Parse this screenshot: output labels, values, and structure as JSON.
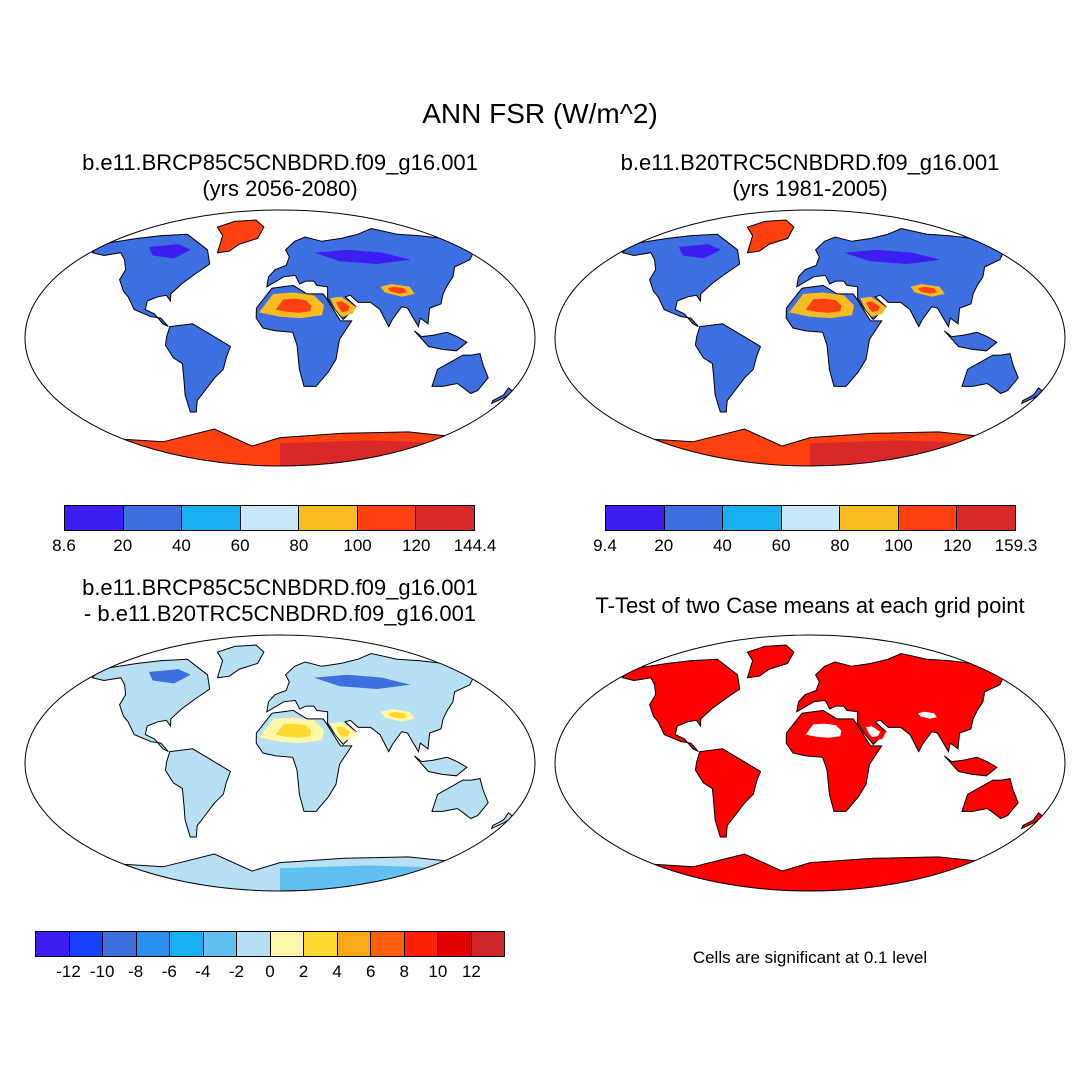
{
  "title": "ANN FSR (W/m^2)",
  "panels": {
    "p1": {
      "title_line1": "b.e11.BRCP85C5CNBDRD.f09_g16.001",
      "title_line2": "(yrs 2056-2080)"
    },
    "p2": {
      "title_line1": "b.e11.B20TRC5CNBDRD.f09_g16.001",
      "title_line2": "(yrs 1981-2005)"
    },
    "p3": {
      "title_line1": "b.e11.BRCP85C5CNBDRD.f09_g16.001",
      "title_line2": "- b.e11.B20TRC5CNBDRD.f09_g16.001"
    },
    "p4": {
      "title_line1": "T-Test of two Case means at each grid point",
      "note": "Cells are significant at 0.1 level"
    }
  },
  "colorbars": {
    "cb1": {
      "labels": [
        "8.6",
        "20",
        "40",
        "60",
        "80",
        "100",
        "120",
        "144.4"
      ],
      "colors": [
        "#3a1ff0",
        "#3d6fe0",
        "#18b0f0",
        "#c6e8f8",
        "#f8bc20",
        "#ff4010",
        "#d82828"
      ]
    },
    "cb2": {
      "labels": [
        "9.4",
        "20",
        "40",
        "60",
        "80",
        "100",
        "120",
        "159.3"
      ],
      "colors": [
        "#3a1ff0",
        "#3d6fe0",
        "#18b0f0",
        "#c6e8f8",
        "#f8bc20",
        "#ff4010",
        "#d82828"
      ]
    },
    "cb3": {
      "labels": [
        "-12",
        "-10",
        "-8",
        "-6",
        "-4",
        "-2",
        "0",
        "2",
        "4",
        "6",
        "8",
        "10",
        "12"
      ],
      "colors": [
        "#3a1ff0",
        "#1a40ff",
        "#3d6fe0",
        "#2a90f0",
        "#18b0f0",
        "#60c0f0",
        "#b8e0f4",
        "#fff8a8",
        "#ffd830",
        "#f8a818",
        "#ff6010",
        "#ff2000",
        "#e00000",
        "#d02828"
      ]
    }
  },
  "map_colors": {
    "ocean": "#ffffff",
    "p1": {
      "land": "#3d6fe0",
      "desert": "#f8bc20",
      "desert_hot": "#ff4010",
      "ice": "#ff4010",
      "ice_hot": "#d82828",
      "arctic": "#3a1ff0"
    },
    "p2": {
      "land": "#3d6fe0",
      "desert": "#f8bc20",
      "desert_hot": "#ff4010",
      "ice": "#ff4010",
      "ice_hot": "#d82828",
      "arctic": "#3a1ff0"
    },
    "p3": {
      "land": "#b8e0f4",
      "desert": "#fff8a8",
      "desert_hot": "#ffd830",
      "ice": "#b8e0f4",
      "ice_hot": "#60c0f0",
      "arctic": "#3d6fe0"
    },
    "p4": {
      "land": "#ff0000",
      "desert": "#ff0000",
      "desert_hot": "#ffffff",
      "ice": "#ff0000",
      "ice_hot": "#ff0000",
      "arctic": "#ff0000"
    }
  }
}
